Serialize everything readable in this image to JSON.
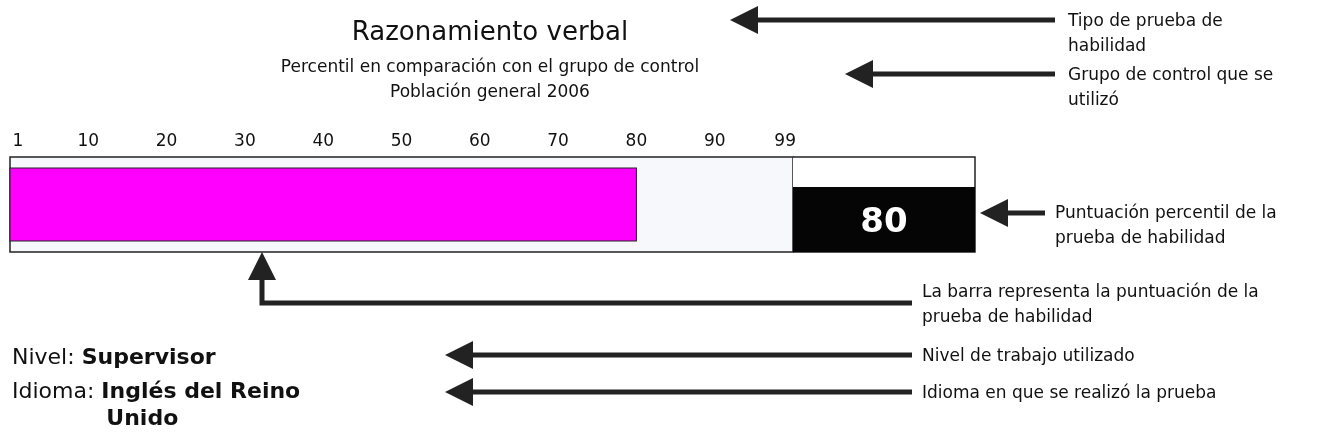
{
  "chart_data": {
    "type": "bar",
    "orientation": "horizontal",
    "title": "Razonamiento verbal",
    "subtitle": "Percentil en comparación con el grupo de control\nPoblación general 2006",
    "categories": [
      null
    ],
    "values": [
      80
    ],
    "color": "#ff00ff",
    "xlim": [
      0,
      100
    ],
    "xticks": [
      1,
      10,
      20,
      30,
      40,
      50,
      60,
      70,
      80,
      90,
      99
    ],
    "annotations": [
      "Tipo de prueba de habilidad",
      "Grupo de control que se utilizó",
      "Puntuación percentil de la prueba de habilidad",
      "La barra representa la puntuación de la prueba de habilidad",
      "Nivel de trabajo utilizado",
      "Idioma en que se realizó la prueba",
      "Nivel: Supervisor",
      "Idioma: Inglés del Reino Unido",
      "80"
    ]
  }
}
